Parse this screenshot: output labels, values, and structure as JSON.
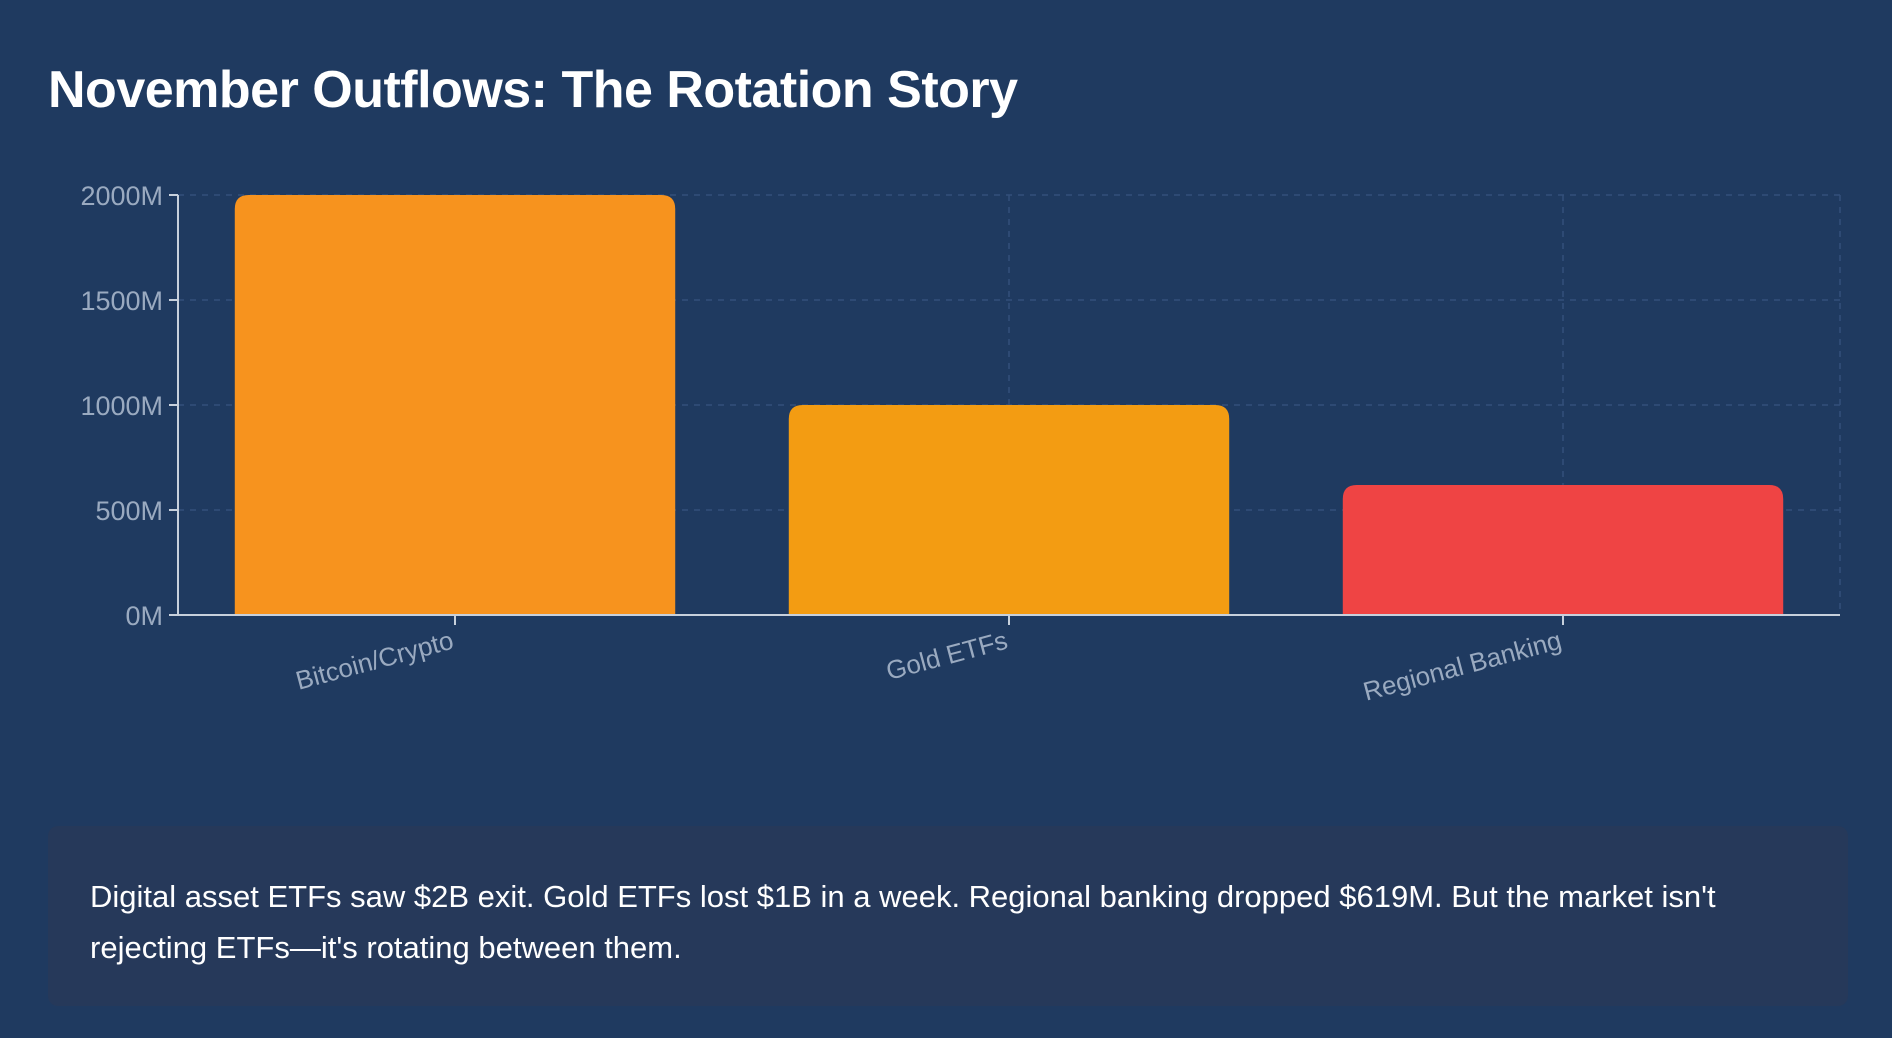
{
  "page": {
    "title": "November Outflows: The Rotation Story",
    "caption": "Digital asset ETFs saw $2B exit. Gold ETFs lost $1B in a week. Regional banking dropped $619M. But the market isn't rejecting ETFs—it's rotating between them."
  },
  "chart_data": {
    "type": "bar",
    "title": "November Outflows: The Rotation Story",
    "xlabel": "",
    "ylabel": "",
    "categories": [
      "Bitcoin/Crypto",
      "Gold ETFs",
      "Regional Banking"
    ],
    "values": [
      2000,
      1000,
      619
    ],
    "unit": "M",
    "ylim": [
      0,
      2000
    ],
    "yticks": [
      0,
      500,
      1000,
      1500,
      2000
    ],
    "ytick_labels": [
      "0M",
      "500M",
      "1000M",
      "1500M",
      "2000M"
    ],
    "grid": true,
    "legend": "none",
    "colors": [
      "#f7931e",
      "#f39c12",
      "#ef4444"
    ],
    "axis_color": "#c7d0dc",
    "tick_label_color": "#9aaac0",
    "grid_color": "#34507a"
  }
}
